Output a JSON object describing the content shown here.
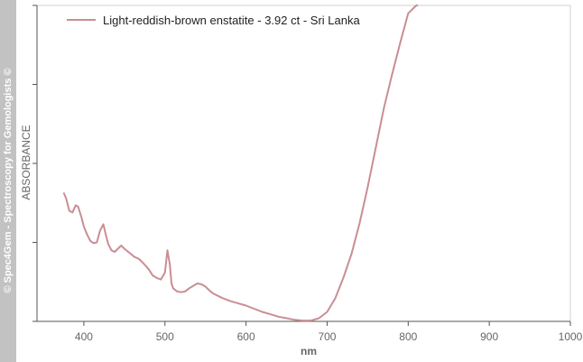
{
  "watermark": "© Spec4Gem - Spectroscopy for Gemologists ©",
  "chart_data": {
    "type": "line",
    "title": "",
    "xlabel": "nm",
    "ylabel": "ABSORBANCE",
    "xlim": [
      350,
      1000
    ],
    "ylim": [
      0,
      4
    ],
    "x_ticks": [
      400,
      500,
      600,
      700,
      800,
      900,
      1000
    ],
    "y_tick_values": [
      0,
      1,
      2,
      3,
      4
    ],
    "y_tick_labels_shown": false,
    "grid": false,
    "legend_position": "top-left",
    "series": [
      {
        "name": "Light-reddish-brown enstatite - 3.92 ct - Sri Lanka",
        "color": "#c98e93",
        "x": [
          375,
          378,
          382,
          386,
          390,
          393,
          397,
          400,
          404,
          408,
          412,
          416,
          420,
          424,
          427,
          430,
          434,
          438,
          442,
          446,
          450,
          456,
          462,
          468,
          474,
          480,
          485,
          490,
          495,
          500,
          503,
          506,
          508,
          510,
          515,
          520,
          525,
          530,
          535,
          540,
          545,
          550,
          555,
          560,
          570,
          580,
          590,
          600,
          610,
          620,
          630,
          640,
          650,
          660,
          670,
          680,
          690,
          700,
          710,
          720,
          730,
          740,
          750,
          760,
          770,
          780,
          790,
          800,
          810,
          812
        ],
        "y": [
          1.63,
          1.56,
          1.4,
          1.38,
          1.47,
          1.45,
          1.32,
          1.2,
          1.1,
          1.02,
          0.99,
          1.0,
          1.15,
          1.23,
          1.1,
          0.98,
          0.9,
          0.88,
          0.92,
          0.96,
          0.92,
          0.87,
          0.82,
          0.79,
          0.73,
          0.66,
          0.58,
          0.55,
          0.53,
          0.62,
          0.9,
          0.72,
          0.48,
          0.42,
          0.38,
          0.37,
          0.38,
          0.42,
          0.45,
          0.48,
          0.47,
          0.44,
          0.39,
          0.35,
          0.3,
          0.26,
          0.23,
          0.2,
          0.16,
          0.12,
          0.09,
          0.06,
          0.04,
          0.02,
          0.01,
          0.01,
          0.04,
          0.12,
          0.29,
          0.55,
          0.85,
          1.24,
          1.7,
          2.2,
          2.7,
          3.12,
          3.52,
          3.9,
          4.17,
          4.22
        ]
      }
    ]
  }
}
